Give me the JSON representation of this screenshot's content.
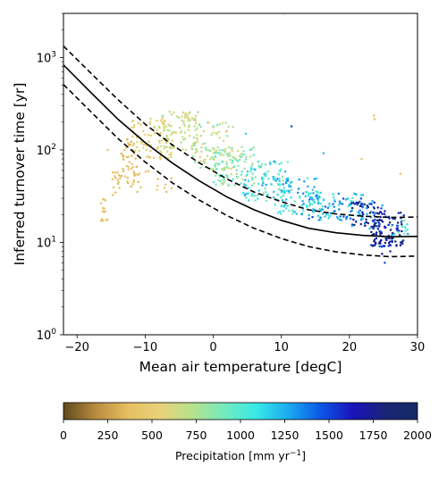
{
  "chart_data": {
    "type": "scatter",
    "title": "",
    "xlabel": "Mean air temperature [degC]",
    "ylabel": "Inferred turnover time [yr]",
    "xlim": [
      -22,
      30
    ],
    "ylim": [
      1,
      3000
    ],
    "yscale": "log",
    "x_ticks": [
      "−20",
      "−10",
      "0",
      "10",
      "20",
      "30"
    ],
    "x_tick_values": [
      -20,
      -10,
      0,
      10,
      20,
      30
    ],
    "y_ticks": [
      {
        "value": 1,
        "base": "10",
        "exp": "0"
      },
      {
        "value": 10,
        "base": "10",
        "exp": "1"
      },
      {
        "value": 100,
        "base": "10",
        "exp": "2"
      },
      {
        "value": 1000,
        "base": "10",
        "exp": "3"
      }
    ],
    "grid": false,
    "fit_curves": [
      {
        "style": "solid",
        "points": [
          [
            -22,
            830
          ],
          [
            -18,
            420
          ],
          [
            -14,
            215
          ],
          [
            -10,
            120
          ],
          [
            -6,
            72
          ],
          [
            -2,
            46
          ],
          [
            2,
            31
          ],
          [
            6,
            22.5
          ],
          [
            10,
            17.3
          ],
          [
            14,
            14.2
          ],
          [
            18,
            12.7
          ],
          [
            22,
            11.9
          ],
          [
            26,
            11.5
          ],
          [
            30,
            11.6
          ]
        ]
      },
      {
        "style": "dashed",
        "points": [
          [
            -22,
            1330
          ],
          [
            -18,
            680
          ],
          [
            -14,
            350
          ],
          [
            -10,
            190
          ],
          [
            -6,
            113
          ],
          [
            -2,
            72
          ],
          [
            2,
            48.5
          ],
          [
            6,
            35
          ],
          [
            10,
            27.5
          ],
          [
            14,
            22.5
          ],
          [
            18,
            20.3
          ],
          [
            22,
            19.2
          ],
          [
            26,
            18.6
          ],
          [
            30,
            18.8
          ]
        ]
      },
      {
        "style": "dashed",
        "points": [
          [
            -22,
            510
          ],
          [
            -18,
            260
          ],
          [
            -14,
            133
          ],
          [
            -10,
            74
          ],
          [
            -6,
            44
          ],
          [
            -2,
            28.5
          ],
          [
            2,
            19.5
          ],
          [
            6,
            14.2
          ],
          [
            10,
            11
          ],
          [
            14,
            9
          ],
          [
            18,
            7.9
          ],
          [
            22,
            7.3
          ],
          [
            26,
            7.0
          ],
          [
            30,
            7.1
          ]
        ]
      }
    ],
    "scatter_clusters": [
      {
        "x_range": [
          -16.5,
          -15.5
        ],
        "y_range": [
          17,
          30
        ],
        "precip": [
          350,
          420
        ],
        "n": 14
      },
      {
        "x_range": [
          -15,
          -13.5
        ],
        "y_range": [
          30,
          60
        ],
        "precip": [
          320,
          420
        ],
        "n": 16
      },
      {
        "x_range": [
          -13.5,
          -11
        ],
        "y_range": [
          40,
          140
        ],
        "precip": [
          300,
          480
        ],
        "n": 50
      },
      {
        "x_range": [
          -12,
          -6
        ],
        "y_range": [
          80,
          220
        ],
        "precip": [
          450,
          650
        ],
        "n": 90
      },
      {
        "x_range": [
          -8,
          -2
        ],
        "y_range": [
          100,
          260
        ],
        "precip": [
          500,
          800
        ],
        "n": 90
      },
      {
        "x_range": [
          -3,
          3
        ],
        "y_range": [
          60,
          200
        ],
        "precip": [
          550,
          900
        ],
        "n": 90
      },
      {
        "x_range": [
          0,
          6
        ],
        "y_range": [
          40,
          110
        ],
        "precip": [
          650,
          1050
        ],
        "n": 90
      },
      {
        "x_range": [
          4,
          11
        ],
        "y_range": [
          28,
          75
        ],
        "precip": [
          800,
          1300
        ],
        "n": 100
      },
      {
        "x_range": [
          9,
          16
        ],
        "y_range": [
          20,
          50
        ],
        "precip": [
          900,
          1400
        ],
        "n": 100
      },
      {
        "x_range": [
          14,
          22
        ],
        "y_range": [
          17,
          35
        ],
        "precip": [
          950,
          1500
        ],
        "n": 90
      },
      {
        "x_range": [
          20,
          25
        ],
        "y_range": [
          14,
          28
        ],
        "precip": [
          1200,
          2000
        ],
        "n": 70
      },
      {
        "x_range": [
          23,
          28
        ],
        "y_range": [
          9,
          22
        ],
        "precip": [
          1400,
          2000
        ],
        "n": 110
      },
      {
        "x_range": [
          -12,
          -6
        ],
        "y_range": [
          35,
          60
        ],
        "precip": [
          350,
          450
        ],
        "n": 14
      },
      {
        "x_range": [
          26,
          29
        ],
        "y_range": [
          11,
          20
        ],
        "precip": [
          800,
          1300
        ],
        "n": 14
      }
    ],
    "scatter_outliers": [
      {
        "x": 23.6,
        "y": 235,
        "precip": 380
      },
      {
        "x": 23.7,
        "y": 215,
        "precip": 380
      },
      {
        "x": 10.5,
        "y": 3000,
        "precip": 500
      },
      {
        "x": 21.8,
        "y": 80,
        "precip": 400
      },
      {
        "x": 27.5,
        "y": 55,
        "precip": 400
      },
      {
        "x": 16.2,
        "y": 92,
        "precip": 1200
      },
      {
        "x": 11.5,
        "y": 180,
        "precip": 1500
      },
      {
        "x": 4.8,
        "y": 150,
        "precip": 1150
      },
      {
        "x": 25.2,
        "y": 6,
        "precip": 1450
      },
      {
        "x": 26,
        "y": 8,
        "precip": 1700
      },
      {
        "x": 24.8,
        "y": 7.5,
        "precip": 1700
      },
      {
        "x": -15.5,
        "y": 100,
        "precip": 420
      }
    ],
    "colorbar": {
      "label_prefix": "Precipitation [mm yr",
      "label_exp": "−1",
      "label_suffix": "]",
      "min": 0,
      "max": 2000,
      "ticks": [
        "0",
        "250",
        "500",
        "750",
        "1000",
        "1250",
        "1500",
        "1750",
        "2000"
      ],
      "tick_values": [
        0,
        250,
        500,
        750,
        1000,
        1250,
        1500,
        1750,
        2000
      ],
      "colormap_stops": [
        "#5e4a1b",
        "#b98b3f",
        "#e6bf62",
        "#e9d27b",
        "#b6e28c",
        "#73ebbe",
        "#38e9e6",
        "#1ba9ef",
        "#0b57e6",
        "#1a12b9",
        "#1b2576",
        "#142a66"
      ]
    }
  }
}
